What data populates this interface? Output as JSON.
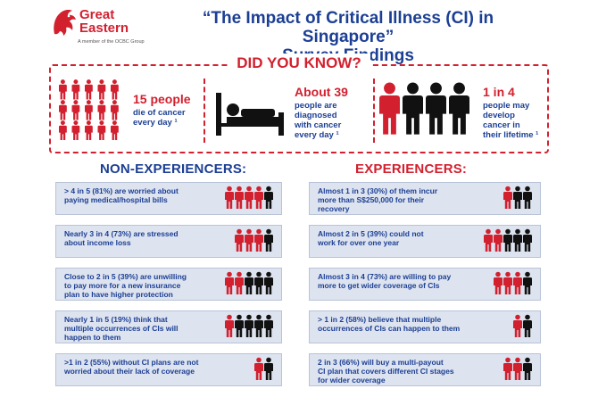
{
  "brand": {
    "name_line1": "Great",
    "name_line2": "Eastern",
    "tagline": "A member of the OCBC Group",
    "lion_icon": "lion-logo-icon"
  },
  "header": {
    "title_line1": "“The Impact of Critical Illness (CI) in Singapore”",
    "title_line2": "Survey Findings"
  },
  "did_you_know": {
    "title": "DID YOU KNOW?",
    "facts": [
      {
        "highlight": "15 people",
        "lines": [
          "die of cancer",
          "every day ¹"
        ],
        "icon": "people-grid-icon"
      },
      {
        "highlight": "About 39",
        "lines": [
          "people are",
          "diagnosed",
          "with cancer",
          "every day ¹"
        ],
        "icon": "hospital-bed-icon"
      },
      {
        "highlight": "1 in 4",
        "lines": [
          "people may",
          "develop",
          "cancer in",
          "their lifetime ¹"
        ],
        "icon": "people-row-icon"
      }
    ]
  },
  "non_experiencers": {
    "heading": "NON-EXPERIENCERS:",
    "items": [
      {
        "lines": [
          "> 4 in 5 (81%) are worried about",
          "paying medical/hospital bills"
        ],
        "red": 4,
        "total": 5
      },
      {
        "lines": [
          "Nearly 3 in 4 (73%) are stressed",
          "about income loss"
        ],
        "red": 3,
        "total": 4
      },
      {
        "lines": [
          "Close to 2 in 5 (39%) are unwilling",
          "to pay more for a new insurance",
          "plan to have higher protection"
        ],
        "red": 2,
        "total": 5
      },
      {
        "lines": [
          "Nearly 1 in 5 (19%) think that",
          "multiple occurrences of CIs will",
          "happen to them"
        ],
        "red": 1,
        "total": 5
      },
      {
        "lines": [
          ">1 in 2 (55%) without CI plans are not",
          "worried about their lack of coverage"
        ],
        "red": 1,
        "total": 2
      }
    ]
  },
  "experiencers": {
    "heading": "EXPERIENCERS:",
    "items": [
      {
        "lines": [
          "Almost 1 in 3 (30%) of them incur",
          "more than S$250,000 for their",
          "recovery"
        ],
        "red": 1,
        "total": 3
      },
      {
        "lines": [
          "Almost 2 in 5 (39%) could not",
          "work for over one year"
        ],
        "red": 2,
        "total": 5
      },
      {
        "lines": [
          "Almost 3 in 4 (73%) are willing to pay",
          "more to get wider coverage of CIs"
        ],
        "red": 3,
        "total": 4
      },
      {
        "lines": [
          "> 1 in 2 (58%) believe that multiple",
          "occurrences of CIs can happen to them"
        ],
        "red": 1,
        "total": 2
      },
      {
        "lines": [
          "2 in 3 (66%) will buy a multi-payout",
          "CI plan that covers different CI stages",
          "for wider coverage"
        ],
        "red": 2,
        "total": 3
      }
    ]
  },
  "colors": {
    "red": "#d2202f",
    "black": "#111111",
    "blue": "#1c3f94",
    "card": "#dde3ef"
  }
}
